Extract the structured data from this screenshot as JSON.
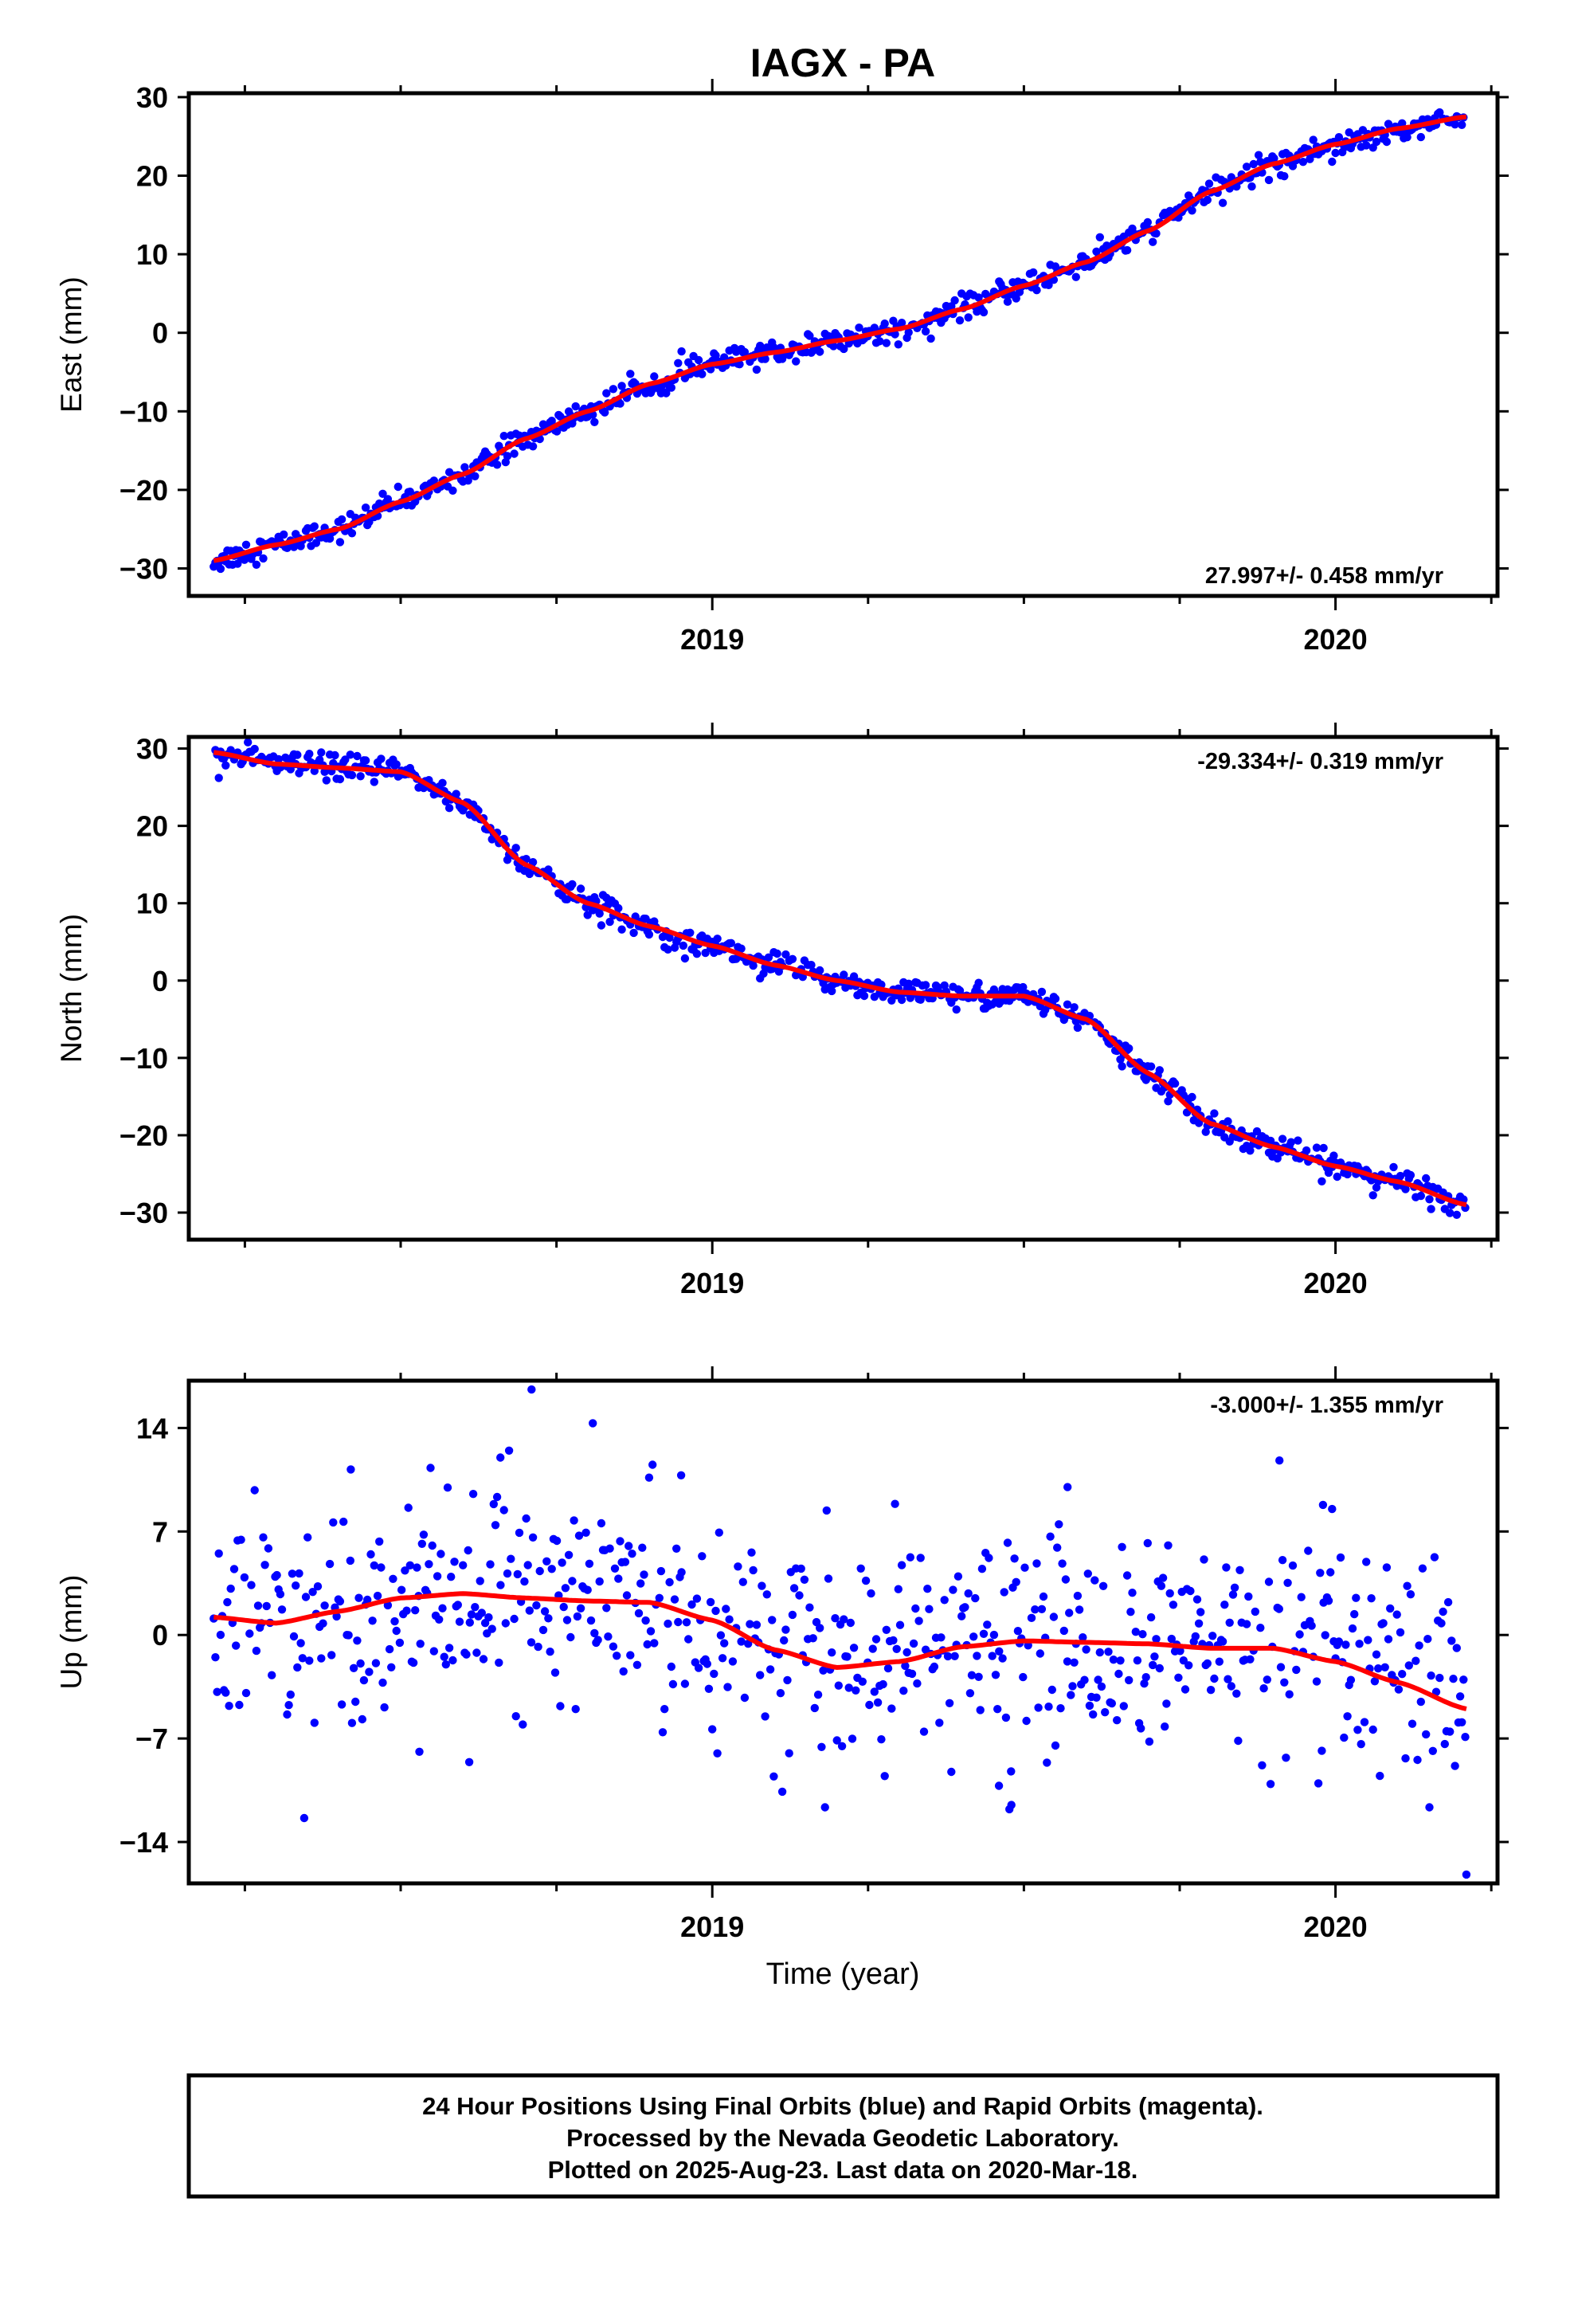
{
  "title": "IAGX - PA",
  "x_axis_label": "Time (year)",
  "footer": {
    "line1": "24 Hour Positions Using Final Orbits (blue) and Rapid Orbits (magenta).",
    "line2": "Processed by the Nevada Geodetic Laboratory.",
    "line3": "Plotted on 2025-Aug-23. Last data on 2020-Mar-18."
  },
  "colors": {
    "points": "#0000ff",
    "fit": "#ff0000",
    "frame": "#000000"
  },
  "chart_data": [
    {
      "type": "scatter",
      "component": "east",
      "ylabel": "East (mm)",
      "rate_label": "27.997+/- 0.458 mm/yr",
      "rate_position": "bottom-right",
      "xlim": [
        2018.16,
        2020.26
      ],
      "ylim": [
        -33.5,
        30.5
      ],
      "yticks": [
        -30,
        -20,
        -10,
        0,
        10,
        20,
        30
      ],
      "xticks_labeled": [
        2019,
        2020
      ],
      "xticks_minor": [
        2018.25,
        2018.5,
        2018.75,
        2019.25,
        2019.5,
        2019.75,
        2020.25
      ],
      "data_start": 2018.2,
      "data_end": 2020.21,
      "noise_sd": 0.75,
      "trend_knots": [
        [
          2018.2,
          -29.0
        ],
        [
          2018.3,
          -27.0
        ],
        [
          2018.4,
          -25.0
        ],
        [
          2018.5,
          -21.5
        ],
        [
          2018.6,
          -18.0
        ],
        [
          2018.7,
          -13.5
        ],
        [
          2018.8,
          -10.0
        ],
        [
          2018.9,
          -6.5
        ],
        [
          2019.0,
          -4.0
        ],
        [
          2019.1,
          -2.5
        ],
        [
          2019.2,
          -1.0
        ],
        [
          2019.3,
          0.5
        ],
        [
          2019.4,
          3.0
        ],
        [
          2019.5,
          6.0
        ],
        [
          2019.6,
          9.0
        ],
        [
          2019.7,
          13.0
        ],
        [
          2019.8,
          18.0
        ],
        [
          2019.9,
          21.5
        ],
        [
          2020.0,
          24.0
        ],
        [
          2020.1,
          26.0
        ],
        [
          2020.21,
          27.5
        ]
      ]
    },
    {
      "type": "scatter",
      "component": "north",
      "ylabel": "North (mm)",
      "rate_label": "-29.334+/- 0.319 mm/yr",
      "rate_position": "top-right",
      "xlim": [
        2018.16,
        2020.26
      ],
      "ylim": [
        -33.5,
        31.5
      ],
      "yticks": [
        -30,
        -20,
        -10,
        0,
        10,
        20,
        30
      ],
      "xticks_labeled": [
        2019,
        2020
      ],
      "xticks_minor": [
        2018.25,
        2018.5,
        2018.75,
        2019.25,
        2019.5,
        2019.75,
        2020.25
      ],
      "data_start": 2018.2,
      "data_end": 2020.21,
      "noise_sd": 0.8,
      "trend_knots": [
        [
          2018.2,
          29.5
        ],
        [
          2018.3,
          28.0
        ],
        [
          2018.4,
          27.5
        ],
        [
          2018.5,
          27.0
        ],
        [
          2018.6,
          23.0
        ],
        [
          2018.7,
          15.0
        ],
        [
          2018.8,
          10.0
        ],
        [
          2018.9,
          7.0
        ],
        [
          2019.0,
          4.5
        ],
        [
          2019.1,
          2.0
        ],
        [
          2019.2,
          0.0
        ],
        [
          2019.3,
          -1.5
        ],
        [
          2019.4,
          -2.0
        ],
        [
          2019.5,
          -2.0
        ],
        [
          2019.6,
          -5.0
        ],
        [
          2019.7,
          -12.0
        ],
        [
          2019.8,
          -18.5
        ],
        [
          2019.9,
          -21.5
        ],
        [
          2020.0,
          -24.0
        ],
        [
          2020.1,
          -26.0
        ],
        [
          2020.21,
          -29.0
        ]
      ]
    },
    {
      "type": "scatter",
      "component": "up",
      "ylabel": "Up (mm)",
      "rate_label": "-3.000+/- 1.355 mm/yr",
      "rate_position": "top-right",
      "xlim": [
        2018.16,
        2020.26
      ],
      "ylim": [
        -16.8,
        17.2
      ],
      "yticks": [
        -14,
        -7,
        0,
        7,
        14
      ],
      "xticks_labeled": [
        2019,
        2020
      ],
      "xticks_minor": [
        2018.25,
        2018.5,
        2018.75,
        2019.25,
        2019.5,
        2019.75,
        2020.25
      ],
      "data_start": 2018.2,
      "data_end": 2020.21,
      "noise_sd": 3.6,
      "trend_knots": [
        [
          2018.2,
          1.2
        ],
        [
          2018.3,
          0.8
        ],
        [
          2018.4,
          1.6
        ],
        [
          2018.5,
          2.5
        ],
        [
          2018.6,
          2.8
        ],
        [
          2018.7,
          2.5
        ],
        [
          2018.8,
          2.3
        ],
        [
          2018.9,
          2.2
        ],
        [
          2019.0,
          1.0
        ],
        [
          2019.1,
          -1.0
        ],
        [
          2019.2,
          -2.2
        ],
        [
          2019.3,
          -1.8
        ],
        [
          2019.4,
          -0.8
        ],
        [
          2019.5,
          -0.4
        ],
        [
          2019.6,
          -0.5
        ],
        [
          2019.7,
          -0.6
        ],
        [
          2019.8,
          -0.9
        ],
        [
          2019.9,
          -0.9
        ],
        [
          2020.0,
          -1.8
        ],
        [
          2020.1,
          -3.2
        ],
        [
          2020.21,
          -5.0
        ]
      ],
      "outliers": [
        [
          2018.42,
          11.2
        ],
        [
          2018.53,
          -7.9
        ],
        [
          2018.66,
          12.0
        ],
        [
          2018.71,
          16.6
        ],
        [
          2018.95,
          10.8
        ],
        [
          2019.48,
          -11.5
        ],
        [
          2019.57,
          10.0
        ],
        [
          2019.91,
          11.8
        ],
        [
          2019.98,
          8.8
        ],
        [
          2020.21,
          -16.2
        ],
        [
          2018.61,
          -8.6
        ],
        [
          2019.46,
          -10.2
        ]
      ]
    }
  ]
}
